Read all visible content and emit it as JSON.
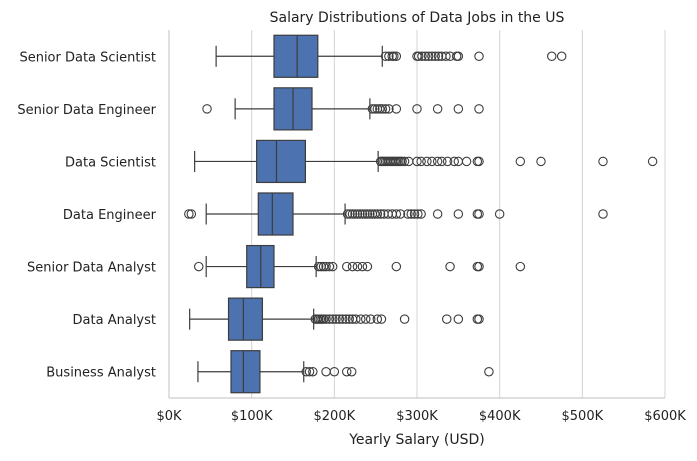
{
  "chart_data": {
    "type": "boxplot",
    "orientation": "horizontal",
    "title": "Salary Distributions of Data Jobs in the US",
    "xlabel": "Yearly Salary (USD)",
    "ylabel": "",
    "xlim": [
      0,
      600000
    ],
    "x_ticks": [
      0,
      100000,
      200000,
      300000,
      400000,
      500000,
      600000
    ],
    "x_tick_labels": [
      "$0K",
      "$100K",
      "$200K",
      "$300K",
      "$400K",
      "$500K",
      "$600K"
    ],
    "grid": "vertical",
    "box_color": "#4c72b0",
    "categories": [
      "Senior Data Scientist",
      "Senior Data Engineer",
      "Data Scientist",
      "Data Engineer",
      "Senior Data Analyst",
      "Data Analyst",
      "Business Analyst"
    ],
    "boxes": [
      {
        "whisker_low": 57000,
        "q1": 127000,
        "median": 155000,
        "q3": 180000,
        "whisker_high": 258000,
        "outliers": [
          262000,
          266000,
          270000,
          272000,
          275000,
          300000,
          302000,
          306000,
          310000,
          314000,
          318000,
          322000,
          326000,
          330000,
          335000,
          340000,
          348000,
          350000,
          375000,
          463000,
          475000
        ]
      },
      {
        "whisker_low": 80000,
        "q1": 127000,
        "median": 150000,
        "q3": 173000,
        "whisker_high": 243000,
        "outliers": [
          46000,
          246000,
          249000,
          252000,
          255000,
          258000,
          262000,
          266000,
          275000,
          300000,
          325000,
          350000,
          375000
        ]
      },
      {
        "whisker_low": 31000,
        "q1": 106000,
        "median": 130000,
        "q3": 165000,
        "whisker_high": 253000,
        "outliers": [
          256000,
          258000,
          260000,
          262000,
          264000,
          266000,
          268000,
          270000,
          272000,
          274000,
          276000,
          278000,
          280000,
          282000,
          285000,
          290000,
          300000,
          305000,
          312000,
          318000,
          325000,
          330000,
          337000,
          345000,
          350000,
          360000,
          373000,
          375000,
          425000,
          450000,
          525000,
          585000
        ]
      },
      {
        "whisker_low": 45000,
        "q1": 108000,
        "median": 125000,
        "q3": 150000,
        "whisker_high": 213000,
        "outliers": [
          24000,
          27000,
          216000,
          219000,
          222000,
          225000,
          228000,
          231000,
          234000,
          237000,
          240000,
          243000,
          246000,
          249000,
          252000,
          256000,
          260000,
          265000,
          270000,
          275000,
          280000,
          289000,
          293000,
          297000,
          301000,
          305000,
          325000,
          350000,
          373000,
          375000,
          400000,
          525000
        ]
      },
      {
        "whisker_low": 45000,
        "q1": 94000,
        "median": 111000,
        "q3": 127000,
        "whisker_high": 178000,
        "outliers": [
          36000,
          181000,
          184000,
          187000,
          190000,
          194000,
          198000,
          215000,
          222000,
          228000,
          234000,
          240000,
          275000,
          340000,
          373000,
          375000,
          425000
        ]
      },
      {
        "whisker_low": 25000,
        "q1": 72000,
        "median": 90000,
        "q3": 113000,
        "whisker_high": 175000,
        "outliers": [
          177000,
          179000,
          181000,
          183000,
          185000,
          187000,
          190000,
          194000,
          198000,
          202000,
          206000,
          210000,
          214000,
          218000,
          222000,
          226000,
          232000,
          238000,
          244000,
          252000,
          257000,
          285000,
          336000,
          350000,
          373000,
          375000
        ]
      },
      {
        "whisker_low": 35000,
        "q1": 75000,
        "median": 90000,
        "q3": 110000,
        "whisker_high": 163000,
        "outliers": [
          166000,
          170000,
          174000,
          190000,
          200000,
          215000,
          221000,
          387000
        ]
      }
    ]
  }
}
